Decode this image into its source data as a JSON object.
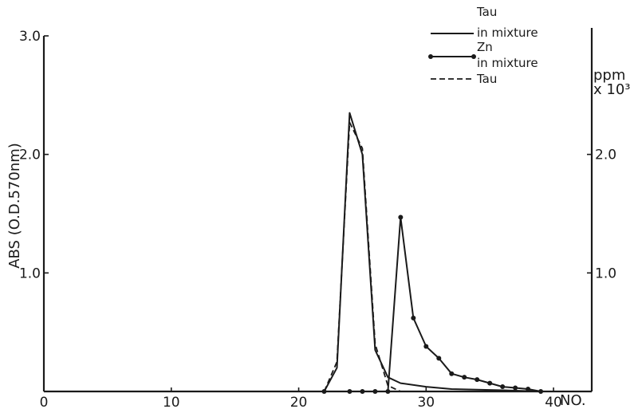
{
  "chart_data": {
    "type": "line",
    "xlabel": "NO.",
    "ylabel": "ABS (O.D.570nm)",
    "y2label": [
      "ppm",
      "x 10³"
    ],
    "xlim": [
      0,
      43
    ],
    "ylim": [
      0,
      3.0
    ],
    "y2lim": [
      0,
      3.0
    ],
    "grid": false,
    "legend_position": "top-right",
    "x_ticks": [
      {
        "value": 0,
        "label": "0"
      },
      {
        "value": 10,
        "label": "10"
      },
      {
        "value": 20,
        "label": "20"
      },
      {
        "value": 30,
        "label": "30"
      },
      {
        "value": 40,
        "label": "40"
      }
    ],
    "y_ticks": [
      {
        "value": 1.0,
        "label": "1.0"
      },
      {
        "value": 2.0,
        "label": "2.0"
      },
      {
        "value": 3.0,
        "label": "3.0"
      }
    ],
    "y2_ticks": [
      {
        "value": 1.0,
        "label": "1.0"
      },
      {
        "value": 2.0,
        "label": "2.0"
      }
    ],
    "series": [
      {
        "name": "Tau in mixture",
        "legend_lines": [
          "Tau",
          "in mixture"
        ],
        "style": "solid",
        "axis": "left",
        "points": [
          [
            0,
            0
          ],
          [
            22,
            0
          ],
          [
            23,
            0.2
          ],
          [
            24,
            2.35
          ],
          [
            25,
            2.0
          ],
          [
            26,
            0.35
          ],
          [
            27,
            0.12
          ],
          [
            28,
            0.07
          ],
          [
            30,
            0.04
          ],
          [
            32,
            0.02
          ],
          [
            36,
            0.01
          ],
          [
            39,
            0
          ],
          [
            43,
            0
          ]
        ]
      },
      {
        "name": "Zn in mixture",
        "legend_lines": [
          "Zn",
          "in mixture"
        ],
        "style": "solid-markers",
        "axis": "right",
        "points": [
          [
            22,
            0
          ],
          [
            24,
            0
          ],
          [
            25,
            0
          ],
          [
            26,
            0
          ],
          [
            27,
            0
          ],
          [
            28,
            1.47
          ],
          [
            29,
            0.62
          ],
          [
            30,
            0.38
          ],
          [
            31,
            0.28
          ],
          [
            32,
            0.15
          ],
          [
            33,
            0.12
          ],
          [
            34,
            0.1
          ],
          [
            35,
            0.07
          ],
          [
            36,
            0.04
          ],
          [
            37,
            0.03
          ],
          [
            38,
            0.02
          ],
          [
            39,
            0
          ]
        ]
      },
      {
        "name": "Tau",
        "legend_lines": [
          "Tau"
        ],
        "style": "dashed",
        "axis": "left",
        "points": [
          [
            22,
            0
          ],
          [
            23,
            0.25
          ],
          [
            24,
            2.27
          ],
          [
            25,
            2.05
          ],
          [
            26,
            0.4
          ],
          [
            27,
            0.05
          ],
          [
            28,
            0
          ]
        ]
      }
    ]
  },
  "icons": {
    "marker": "filled-circle-marker"
  },
  "colors": {
    "ink": "#1a1a1a",
    "background": "#ffffff"
  }
}
